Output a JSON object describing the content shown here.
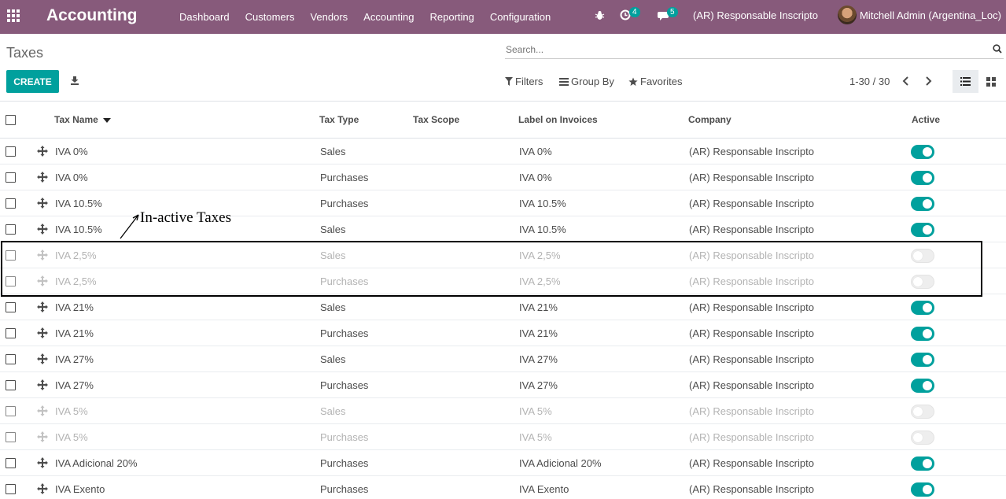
{
  "topbar": {
    "app_title": "Accounting",
    "menu": [
      "Dashboard",
      "Customers",
      "Vendors",
      "Accounting",
      "Reporting",
      "Configuration"
    ],
    "activity_count": "4",
    "messages_count": "5",
    "company": "(AR) Responsable Inscripto",
    "user": "Mitchell Admin (Argentina_Loc)",
    "brand_color": "#875A7B"
  },
  "control_panel": {
    "title": "Taxes",
    "search_placeholder": "Search...",
    "create_label": "CREATE",
    "filters_label": "Filters",
    "groupby_label": "Group By",
    "favorites_label": "Favorites",
    "pager": "1-30 / 30"
  },
  "table": {
    "headers": {
      "name": "Tax Name",
      "type": "Tax Type",
      "scope": "Tax Scope",
      "label": "Label on Invoices",
      "company": "Company",
      "active": "Active"
    },
    "rows": [
      {
        "name": "IVA 0%",
        "type": "Sales",
        "label": "IVA 0%",
        "company": "(AR) Responsable Inscripto",
        "active": true
      },
      {
        "name": "IVA 0%",
        "type": "Purchases",
        "label": "IVA 0%",
        "company": "(AR) Responsable Inscripto",
        "active": true
      },
      {
        "name": "IVA 10.5%",
        "type": "Purchases",
        "label": "IVA 10.5%",
        "company": "(AR) Responsable Inscripto",
        "active": true
      },
      {
        "name": "IVA 10.5%",
        "type": "Sales",
        "label": "IVA 10.5%",
        "company": "(AR) Responsable Inscripto",
        "active": true
      },
      {
        "name": "IVA 2,5%",
        "type": "Sales",
        "label": "IVA 2,5%",
        "company": "(AR) Responsable Inscripto",
        "active": false
      },
      {
        "name": "IVA 2,5%",
        "type": "Purchases",
        "label": "IVA 2,5%",
        "company": "(AR) Responsable Inscripto",
        "active": false
      },
      {
        "name": "IVA 21%",
        "type": "Sales",
        "label": "IVA 21%",
        "company": "(AR) Responsable Inscripto",
        "active": true
      },
      {
        "name": "IVA 21%",
        "type": "Purchases",
        "label": "IVA 21%",
        "company": "(AR) Responsable Inscripto",
        "active": true
      },
      {
        "name": "IVA 27%",
        "type": "Sales",
        "label": "IVA 27%",
        "company": "(AR) Responsable Inscripto",
        "active": true
      },
      {
        "name": "IVA 27%",
        "type": "Purchases",
        "label": "IVA 27%",
        "company": "(AR) Responsable Inscripto",
        "active": true
      },
      {
        "name": "IVA 5%",
        "type": "Sales",
        "label": "IVA 5%",
        "company": "(AR) Responsable Inscripto",
        "active": false
      },
      {
        "name": "IVA 5%",
        "type": "Purchases",
        "label": "IVA 5%",
        "company": "(AR) Responsable Inscripto",
        "active": false
      },
      {
        "name": "IVA Adicional 20%",
        "type": "Purchases",
        "label": "IVA Adicional 20%",
        "company": "(AR) Responsable Inscripto",
        "active": true
      },
      {
        "name": "IVA Exento",
        "type": "Purchases",
        "label": "IVA Exento",
        "company": "(AR) Responsable Inscripto",
        "active": true
      }
    ]
  },
  "annotation": {
    "text": "In-active Taxes"
  },
  "colors": {
    "primary": "#00A09D",
    "inactive_text": "#b3b3b3"
  }
}
